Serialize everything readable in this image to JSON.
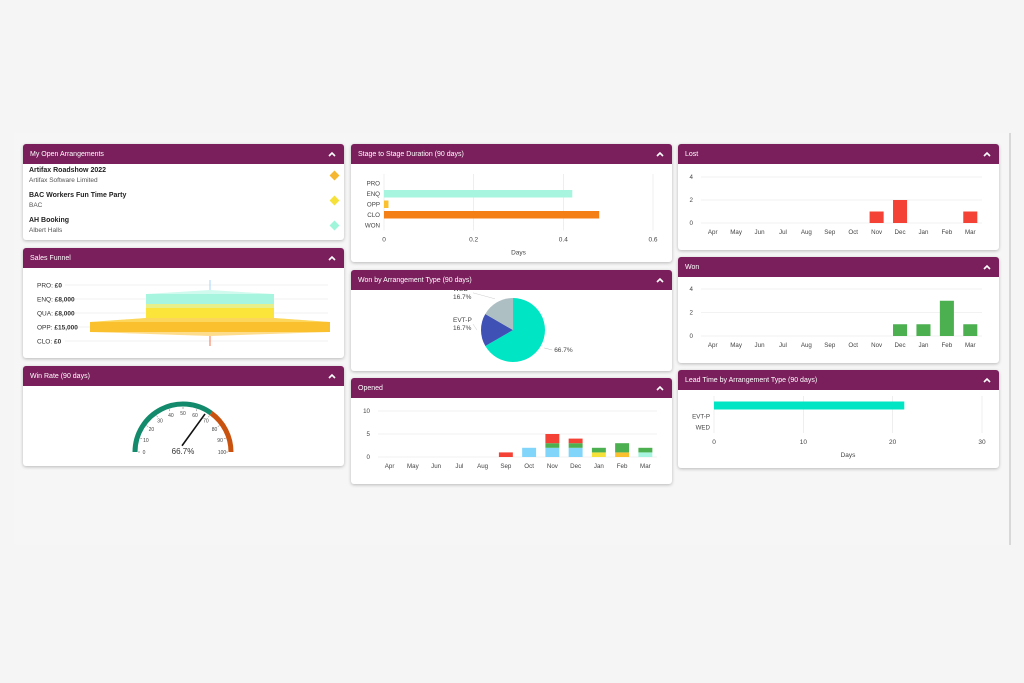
{
  "colors": {
    "header_bg": "#7a1f5c",
    "header_text": "#ffffff",
    "page_bg": "#f5f5f5"
  },
  "icons": {
    "collapse": "chevron-up-icon"
  },
  "panels": {
    "open_arrangements": {
      "title": "My Open Arrangements",
      "items": [
        {
          "title": "Artifax Roadshow 2022",
          "subtitle": "Artifax Software Limited",
          "color": "#f5b731"
        },
        {
          "title": "BAC Workers Fun Time Party",
          "subtitle": "BAC",
          "color": "#f6e13a"
        },
        {
          "title": "AH Booking",
          "subtitle": "Albert Halls",
          "color": "#9ef5d9"
        }
      ]
    },
    "sales_funnel": {
      "title": "Sales Funnel",
      "stages": [
        {
          "label": "PRO:",
          "value": "£0",
          "amount": 0,
          "color": "#90caf9"
        },
        {
          "label": "ENQ:",
          "value": "£8,000",
          "amount": 8000,
          "color": "#a7f5de"
        },
        {
          "label": "QUA:",
          "value": "£8,000",
          "amount": 8000,
          "color": "#fbe53b"
        },
        {
          "label": "OPP:",
          "value": "£15,000",
          "amount": 15000,
          "color": "#fbc02d"
        },
        {
          "label": "CLO:",
          "value": "£0",
          "amount": 0,
          "color": "#f4511e"
        }
      ]
    },
    "win_rate": {
      "title": "Win Rate (90 days)",
      "value": 66.7,
      "value_label": "66.7%",
      "ticks": [
        "0",
        "10",
        "20",
        "30",
        "40",
        "50",
        "60",
        "70",
        "80",
        "90",
        "100"
      ],
      "band_colors": {
        "low": "#138a6b",
        "high": "#c9530e"
      },
      "threshold": 70
    },
    "stage_duration": {
      "title": "Stage to Stage Duration (90 days)",
      "xlabel": "Days"
    },
    "won_by_type": {
      "title": "Won by Arrangement Type (90 days)"
    },
    "opened": {
      "title": "Opened"
    },
    "lost": {
      "title": "Lost"
    },
    "won": {
      "title": "Won"
    },
    "lead_time": {
      "title": "Lead Time by Arrangement Type (90 days)",
      "xlabel": "Days"
    }
  },
  "chart_data": [
    {
      "id": "stage_duration",
      "type": "bar",
      "orientation": "horizontal",
      "title": "Stage to Stage Duration (90 days)",
      "categories": [
        "PRO",
        "ENQ",
        "OPP",
        "CLO",
        "WON"
      ],
      "values": [
        0,
        0.42,
        0.01,
        0.48,
        0
      ],
      "colors": [
        "#90caf9",
        "#a7f5de",
        "#fbc02d",
        "#f57f17",
        "#4caf50"
      ],
      "xlabel": "Days",
      "ylabel": "",
      "xlim": [
        0,
        0.6
      ],
      "xticks": [
        "0",
        "0.2",
        "0.4",
        "0.6"
      ],
      "grid": true
    },
    {
      "id": "won_by_type",
      "type": "pie",
      "title": "Won by Arrangement Type (90 days)",
      "slices": [
        {
          "label": "",
          "value": 66.7,
          "display": "66.7%",
          "color": "#00e5c3"
        },
        {
          "label": "EVT-P",
          "value": 16.7,
          "display": "16.7%",
          "color": "#3f51b5"
        },
        {
          "label": "WED",
          "value": 16.7,
          "display": "16.7%",
          "color": "#aebfc4"
        }
      ]
    },
    {
      "id": "opened",
      "type": "bar",
      "stacked": true,
      "title": "Opened",
      "legend": null,
      "categories": [
        "Apr",
        "May",
        "Jun",
        "Jul",
        "Aug",
        "Sep",
        "Oct",
        "Nov",
        "Dec",
        "Jan",
        "Feb",
        "Mar"
      ],
      "series": [
        {
          "name": "blue",
          "color": "#81d4fa",
          "values": [
            0,
            0,
            0,
            0,
            0,
            0,
            2,
            2,
            2,
            0,
            0,
            0
          ]
        },
        {
          "name": "mint",
          "color": "#a7f5de",
          "values": [
            0,
            0,
            0,
            0,
            0,
            0,
            0,
            0,
            0,
            0,
            0,
            1
          ]
        },
        {
          "name": "yellow",
          "color": "#f6e13a",
          "values": [
            0,
            0,
            0,
            0,
            0,
            0,
            0,
            0,
            0,
            1,
            0,
            0
          ]
        },
        {
          "name": "orange",
          "color": "#fbc02d",
          "values": [
            0,
            0,
            0,
            0,
            0,
            0,
            0,
            0,
            0,
            0,
            1,
            0
          ]
        },
        {
          "name": "green",
          "color": "#4caf50",
          "values": [
            0,
            0,
            0,
            0,
            0,
            0,
            0,
            1,
            1,
            1,
            2,
            1
          ]
        },
        {
          "name": "red",
          "color": "#f44336",
          "values": [
            0,
            0,
            0,
            0,
            0,
            1,
            0,
            2,
            1,
            0,
            0,
            0
          ]
        }
      ],
      "ylim": [
        0,
        10
      ],
      "yticks": [
        "0",
        "5",
        "10"
      ],
      "grid": true
    },
    {
      "id": "lost",
      "type": "bar",
      "title": "Lost",
      "categories": [
        "Apr",
        "May",
        "Jun",
        "Jul",
        "Aug",
        "Sep",
        "Oct",
        "Nov",
        "Dec",
        "Jan",
        "Feb",
        "Mar"
      ],
      "values": [
        0,
        0,
        0,
        0,
        0,
        0,
        0,
        1,
        2,
        0,
        0,
        1
      ],
      "color": "#f44336",
      "ylim": [
        0,
        4
      ],
      "yticks": [
        "0",
        "2",
        "4"
      ],
      "grid": true
    },
    {
      "id": "won",
      "type": "bar",
      "title": "Won",
      "categories": [
        "Apr",
        "May",
        "Jun",
        "Jul",
        "Aug",
        "Sep",
        "Oct",
        "Nov",
        "Dec",
        "Jan",
        "Feb",
        "Mar"
      ],
      "values": [
        0,
        0,
        0,
        0,
        0,
        0,
        0,
        0,
        1,
        1,
        3,
        1
      ],
      "color": "#4caf50",
      "ylim": [
        0,
        4
      ],
      "yticks": [
        "0",
        "2",
        "4"
      ],
      "grid": true
    },
    {
      "id": "lead_time",
      "type": "bar",
      "orientation": "horizontal",
      "title": "Lead Time by Arrangement Type (90 days)",
      "categories": [
        "",
        "EVT-P",
        "WED"
      ],
      "values": [
        21.3,
        0,
        0
      ],
      "color": "#00e5c3",
      "xlabel": "Days",
      "xlim": [
        0,
        30
      ],
      "xticks": [
        "0",
        "10",
        "20",
        "30"
      ],
      "grid": true
    }
  ]
}
